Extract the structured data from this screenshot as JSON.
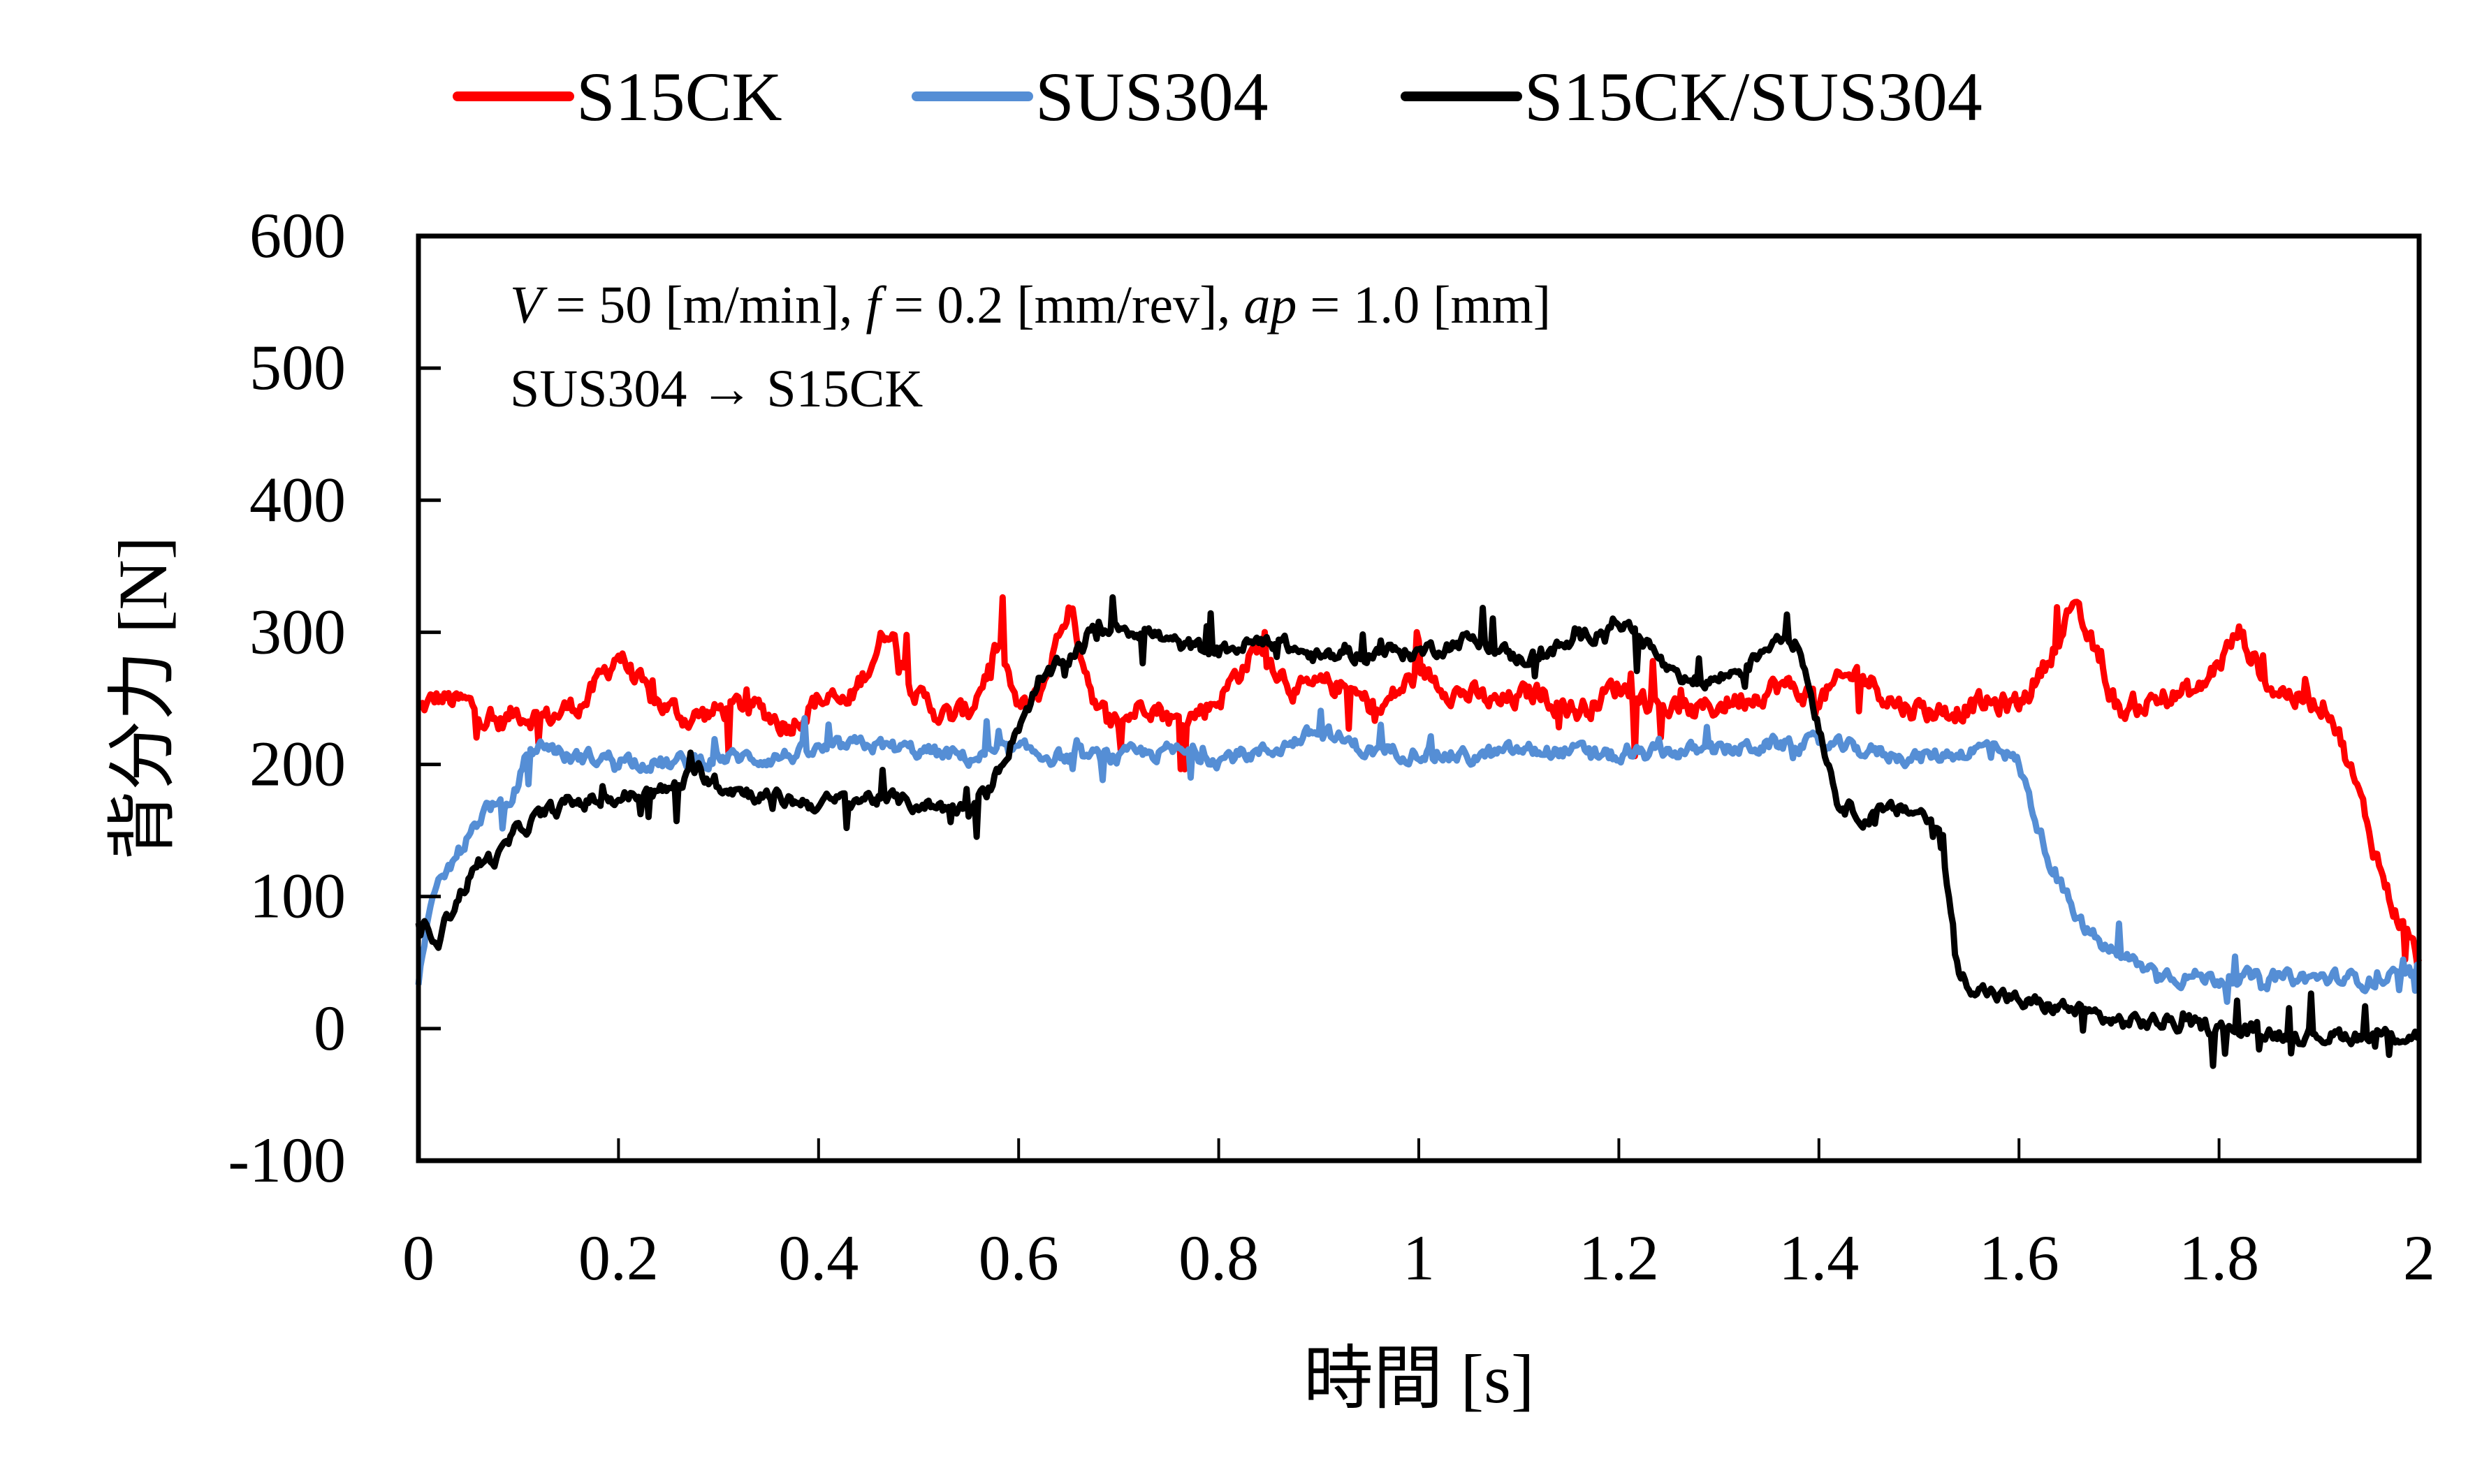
{
  "chart_data": {
    "type": "line",
    "title": "",
    "xlabel": "時間 [s]",
    "ylabel": "背分力 [N]",
    "xlim": [
      0,
      2
    ],
    "ylim": [
      -100,
      600
    ],
    "xticks": [
      "0",
      "0.2",
      "0.4",
      "0.6",
      "0.8",
      "1",
      "1.2",
      "1.4",
      "1.6",
      "1.8",
      "2"
    ],
    "xtick_values": [
      0,
      0.2,
      0.4,
      0.6,
      0.8,
      1.0,
      1.2,
      1.4,
      1.6,
      1.8,
      2.0
    ],
    "yticks": [
      "-100",
      "0",
      "100",
      "200",
      "300",
      "400",
      "500",
      "600"
    ],
    "ytick_values": [
      -100,
      0,
      100,
      200,
      300,
      400,
      500,
      600
    ],
    "grid": false,
    "legend_position": "top-center",
    "annotations": [
      {
        "parts": [
          {
            "text": "V",
            "italic": true
          },
          {
            "text": " = 50 [m/min], ",
            "italic": false
          },
          {
            "text": "f",
            "italic": true
          },
          {
            "text": " = 0.2 [mm/rev], ",
            "italic": false
          },
          {
            "text": "ap",
            "italic": true
          },
          {
            "text": " = 1.0 [mm]",
            "italic": false
          }
        ]
      },
      {
        "parts": [
          {
            "text": "SUS304 → S15CK",
            "italic": false
          }
        ]
      }
    ],
    "series": [
      {
        "name": "S15CK",
        "color": "#ff0000",
        "noise": 18,
        "x": [
          0,
          0.02,
          0.05,
          0.08,
          0.1,
          0.13,
          0.17,
          0.2,
          0.23,
          0.27,
          0.3,
          0.33,
          0.37,
          0.4,
          0.43,
          0.47,
          0.5,
          0.53,
          0.55,
          0.58,
          0.6,
          0.62,
          0.65,
          0.68,
          0.7,
          0.73,
          0.76,
          0.8,
          0.84,
          0.88,
          0.92,
          0.96,
          1.0,
          1.04,
          1.08,
          1.12,
          1.16,
          1.2,
          1.24,
          1.28,
          1.32,
          1.36,
          1.4,
          1.44,
          1.48,
          1.52,
          1.56,
          1.6,
          1.63,
          1.65,
          1.67,
          1.7,
          1.74,
          1.78,
          1.82,
          1.85,
          1.88,
          1.91,
          1.93,
          1.95,
          1.97,
          2.0
        ],
        "y": [
          240,
          250,
          245,
          230,
          240,
          235,
          250,
          285,
          250,
          235,
          240,
          245,
          230,
          250,
          245,
          305,
          250,
          235,
          240,
          290,
          240,
          250,
          320,
          240,
          230,
          250,
          230,
          250,
          290,
          255,
          260,
          240,
          270,
          255,
          245,
          255,
          240,
          260,
          245,
          240,
          250,
          260,
          250,
          270,
          245,
          240,
          245,
          245,
          280,
          320,
          295,
          240,
          250,
          255,
          300,
          260,
          250,
          245,
          200,
          150,
          100,
          50
        ]
      },
      {
        "name": "SUS304",
        "color": "#558ed5",
        "noise": 12,
        "x": [
          0,
          0.01,
          0.03,
          0.05,
          0.07,
          0.09,
          0.11,
          0.13,
          0.15,
          0.2,
          0.25,
          0.3,
          0.35,
          0.4,
          0.45,
          0.5,
          0.55,
          0.6,
          0.65,
          0.7,
          0.75,
          0.8,
          0.85,
          0.9,
          0.95,
          1.0,
          1.05,
          1.1,
          1.15,
          1.2,
          1.25,
          1.3,
          1.35,
          1.4,
          1.45,
          1.5,
          1.55,
          1.58,
          1.6,
          1.62,
          1.64,
          1.66,
          1.68,
          1.7,
          1.73,
          1.76,
          1.8,
          1.85,
          1.9,
          1.95,
          2.0
        ],
        "y": [
          30,
          90,
          120,
          145,
          170,
          165,
          210,
          215,
          205,
          205,
          200,
          205,
          205,
          210,
          215,
          210,
          205,
          210,
          205,
          205,
          210,
          205,
          210,
          225,
          210,
          210,
          205,
          210,
          210,
          205,
          210,
          210,
          215,
          215,
          210,
          205,
          210,
          215,
          200,
          150,
          110,
          80,
          65,
          55,
          45,
          40,
          38,
          38,
          38,
          37,
          40
        ]
      },
      {
        "name": "S15CK/SUS304",
        "color": "#000000",
        "noise": 12,
        "x": [
          0,
          0.02,
          0.04,
          0.06,
          0.08,
          0.1,
          0.12,
          0.15,
          0.2,
          0.25,
          0.28,
          0.3,
          0.35,
          0.4,
          0.45,
          0.5,
          0.55,
          0.57,
          0.6,
          0.62,
          0.65,
          0.67,
          0.7,
          0.73,
          0.76,
          0.8,
          0.85,
          0.9,
          0.95,
          1.0,
          1.05,
          1.1,
          1.15,
          1.2,
          1.23,
          1.26,
          1.3,
          1.33,
          1.36,
          1.38,
          1.4,
          1.42,
          1.45,
          1.48,
          1.5,
          1.52,
          1.53,
          1.54,
          1.56,
          1.6,
          1.65,
          1.7,
          1.75,
          1.8,
          1.85,
          1.9,
          1.95,
          2.0
        ],
        "y": [
          80,
          70,
          100,
          125,
          130,
          150,
          160,
          170,
          175,
          180,
          195,
          185,
          175,
          170,
          175,
          170,
          165,
          180,
          230,
          260,
          280,
          300,
          305,
          300,
          290,
          285,
          295,
          280,
          285,
          285,
          295,
          280,
          290,
          310,
          290,
          260,
          265,
          275,
          300,
          290,
          230,
          170,
          160,
          165,
          165,
          150,
          100,
          40,
          30,
          20,
          15,
          5,
          5,
          0,
          -3,
          -5,
          -5,
          -5
        ]
      }
    ]
  }
}
